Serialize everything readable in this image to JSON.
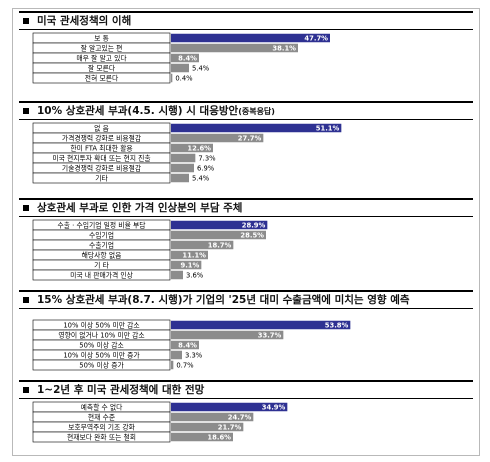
{
  "colors": {
    "highlight": "#2e3192",
    "bar": "#8c8c8c",
    "label_box": "#000000"
  },
  "chart_data": [
    {
      "type": "bar",
      "orientation": "horizontal",
      "title": "미국 관세정책의 이해",
      "categories": [
        "보 통",
        "잘 알고있는 편",
        "매우 잘 알고 있다",
        "잘 모른다",
        "전혀 모른다"
      ],
      "values": [
        47.7,
        38.1,
        8.4,
        5.4,
        0.4
      ],
      "labels": [
        "47.7%",
        "38.1%",
        "8.4%",
        "5.4%",
        "0.4%"
      ],
      "highlight_index": 0,
      "xlim": [
        0,
        60
      ]
    },
    {
      "type": "bar",
      "orientation": "horizontal",
      "title": "10% 상호관세 부과(4.5. 시행) 시 대응방안",
      "title_note": "(중복응답)",
      "categories": [
        "없 음",
        "가격경쟁력 강화로 비용절감",
        "한미 FTA 최대한 활용",
        "미국 현지투자 확대 또는 현지 진출",
        "기술경쟁력 강화로 비용절감",
        "기타"
      ],
      "values": [
        51.1,
        27.7,
        12.6,
        7.3,
        6.9,
        5.4
      ],
      "labels": [
        "51.1%",
        "27.7%",
        "12.6%",
        "7.3%",
        "6.9%",
        "5.4%"
      ],
      "highlight_index": 0,
      "xlim": [
        0,
        60
      ]
    },
    {
      "type": "bar",
      "orientation": "horizontal",
      "title": "상호관세 부과로 인한 가격 인상분의 부담 주체",
      "categories": [
        "수출 · 수입기업 일정 비율 부담",
        "수입기업",
        "수출기업",
        "해당사항 없음",
        "기 타",
        "미국 내 판매가격 인상"
      ],
      "values": [
        28.9,
        28.5,
        18.7,
        11.1,
        9.1,
        3.6
      ],
      "labels": [
        "28.9%",
        "28.5%",
        "18.7%",
        "11.1%",
        "9.1%",
        "3.6%"
      ],
      "highlight_index": 0,
      "xlim": [
        0,
        60
      ]
    },
    {
      "type": "bar",
      "orientation": "horizontal",
      "title": "15% 상호관세 부과(8.7. 시행)가 기업의 '25년 대미 수출금액에 미치는 영향 예측",
      "categories": [
        "10% 이상 50% 미만 감소",
        "영향이 없거나 10% 미만 감소",
        "50% 이상 감소",
        "10% 이상 50% 미만 증가",
        "50% 이상 증가"
      ],
      "values": [
        53.8,
        33.7,
        8.4,
        3.3,
        0.7
      ],
      "labels": [
        "53.8%",
        "33.7%",
        "8.4%",
        "3.3%",
        "0.7%"
      ],
      "highlight_index": 0,
      "xlim": [
        0,
        60
      ]
    },
    {
      "type": "bar",
      "orientation": "horizontal",
      "title": "1~2년 후 미국 관세정책에 대한 전망",
      "categories": [
        "예측할 수 없다",
        "현재 수준",
        "보호무역주의 기조 강화",
        "현재보다 완화 또는 철회"
      ],
      "values": [
        34.9,
        24.7,
        21.7,
        18.6
      ],
      "labels": [
        "34.9%",
        "24.7%",
        "21.7%",
        "18.6%"
      ],
      "highlight_index": 0,
      "xlim": [
        0,
        60
      ]
    }
  ]
}
